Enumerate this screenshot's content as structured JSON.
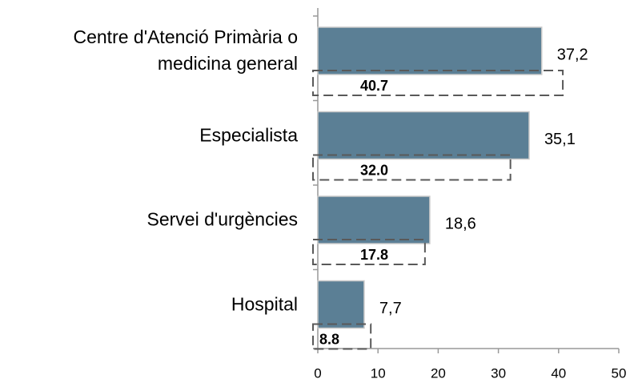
{
  "chart_data": {
    "type": "bar",
    "orientation": "horizontal",
    "categories": [
      "Centre d'Atenció Primària o medicina general",
      "Especialista",
      "Servei d'urgències",
      "Hospital"
    ],
    "series": [
      {
        "color": "#5b7f95",
        "values": [
          37.2,
          35.1,
          18.6,
          7.7
        ],
        "value_labels": [
          "37,2",
          "35,1",
          "18,6",
          "7,7"
        ]
      },
      {
        "color": "#595959",
        "style": "dashed",
        "values": [
          40.7,
          32.0,
          17.8,
          8.8
        ],
        "value_labels": [
          "40.7",
          "32.0",
          "17.8",
          "8.8"
        ]
      }
    ],
    "xlim": [
      0,
      50
    ],
    "xticks": [
      0,
      10,
      20,
      30,
      40,
      50
    ]
  }
}
